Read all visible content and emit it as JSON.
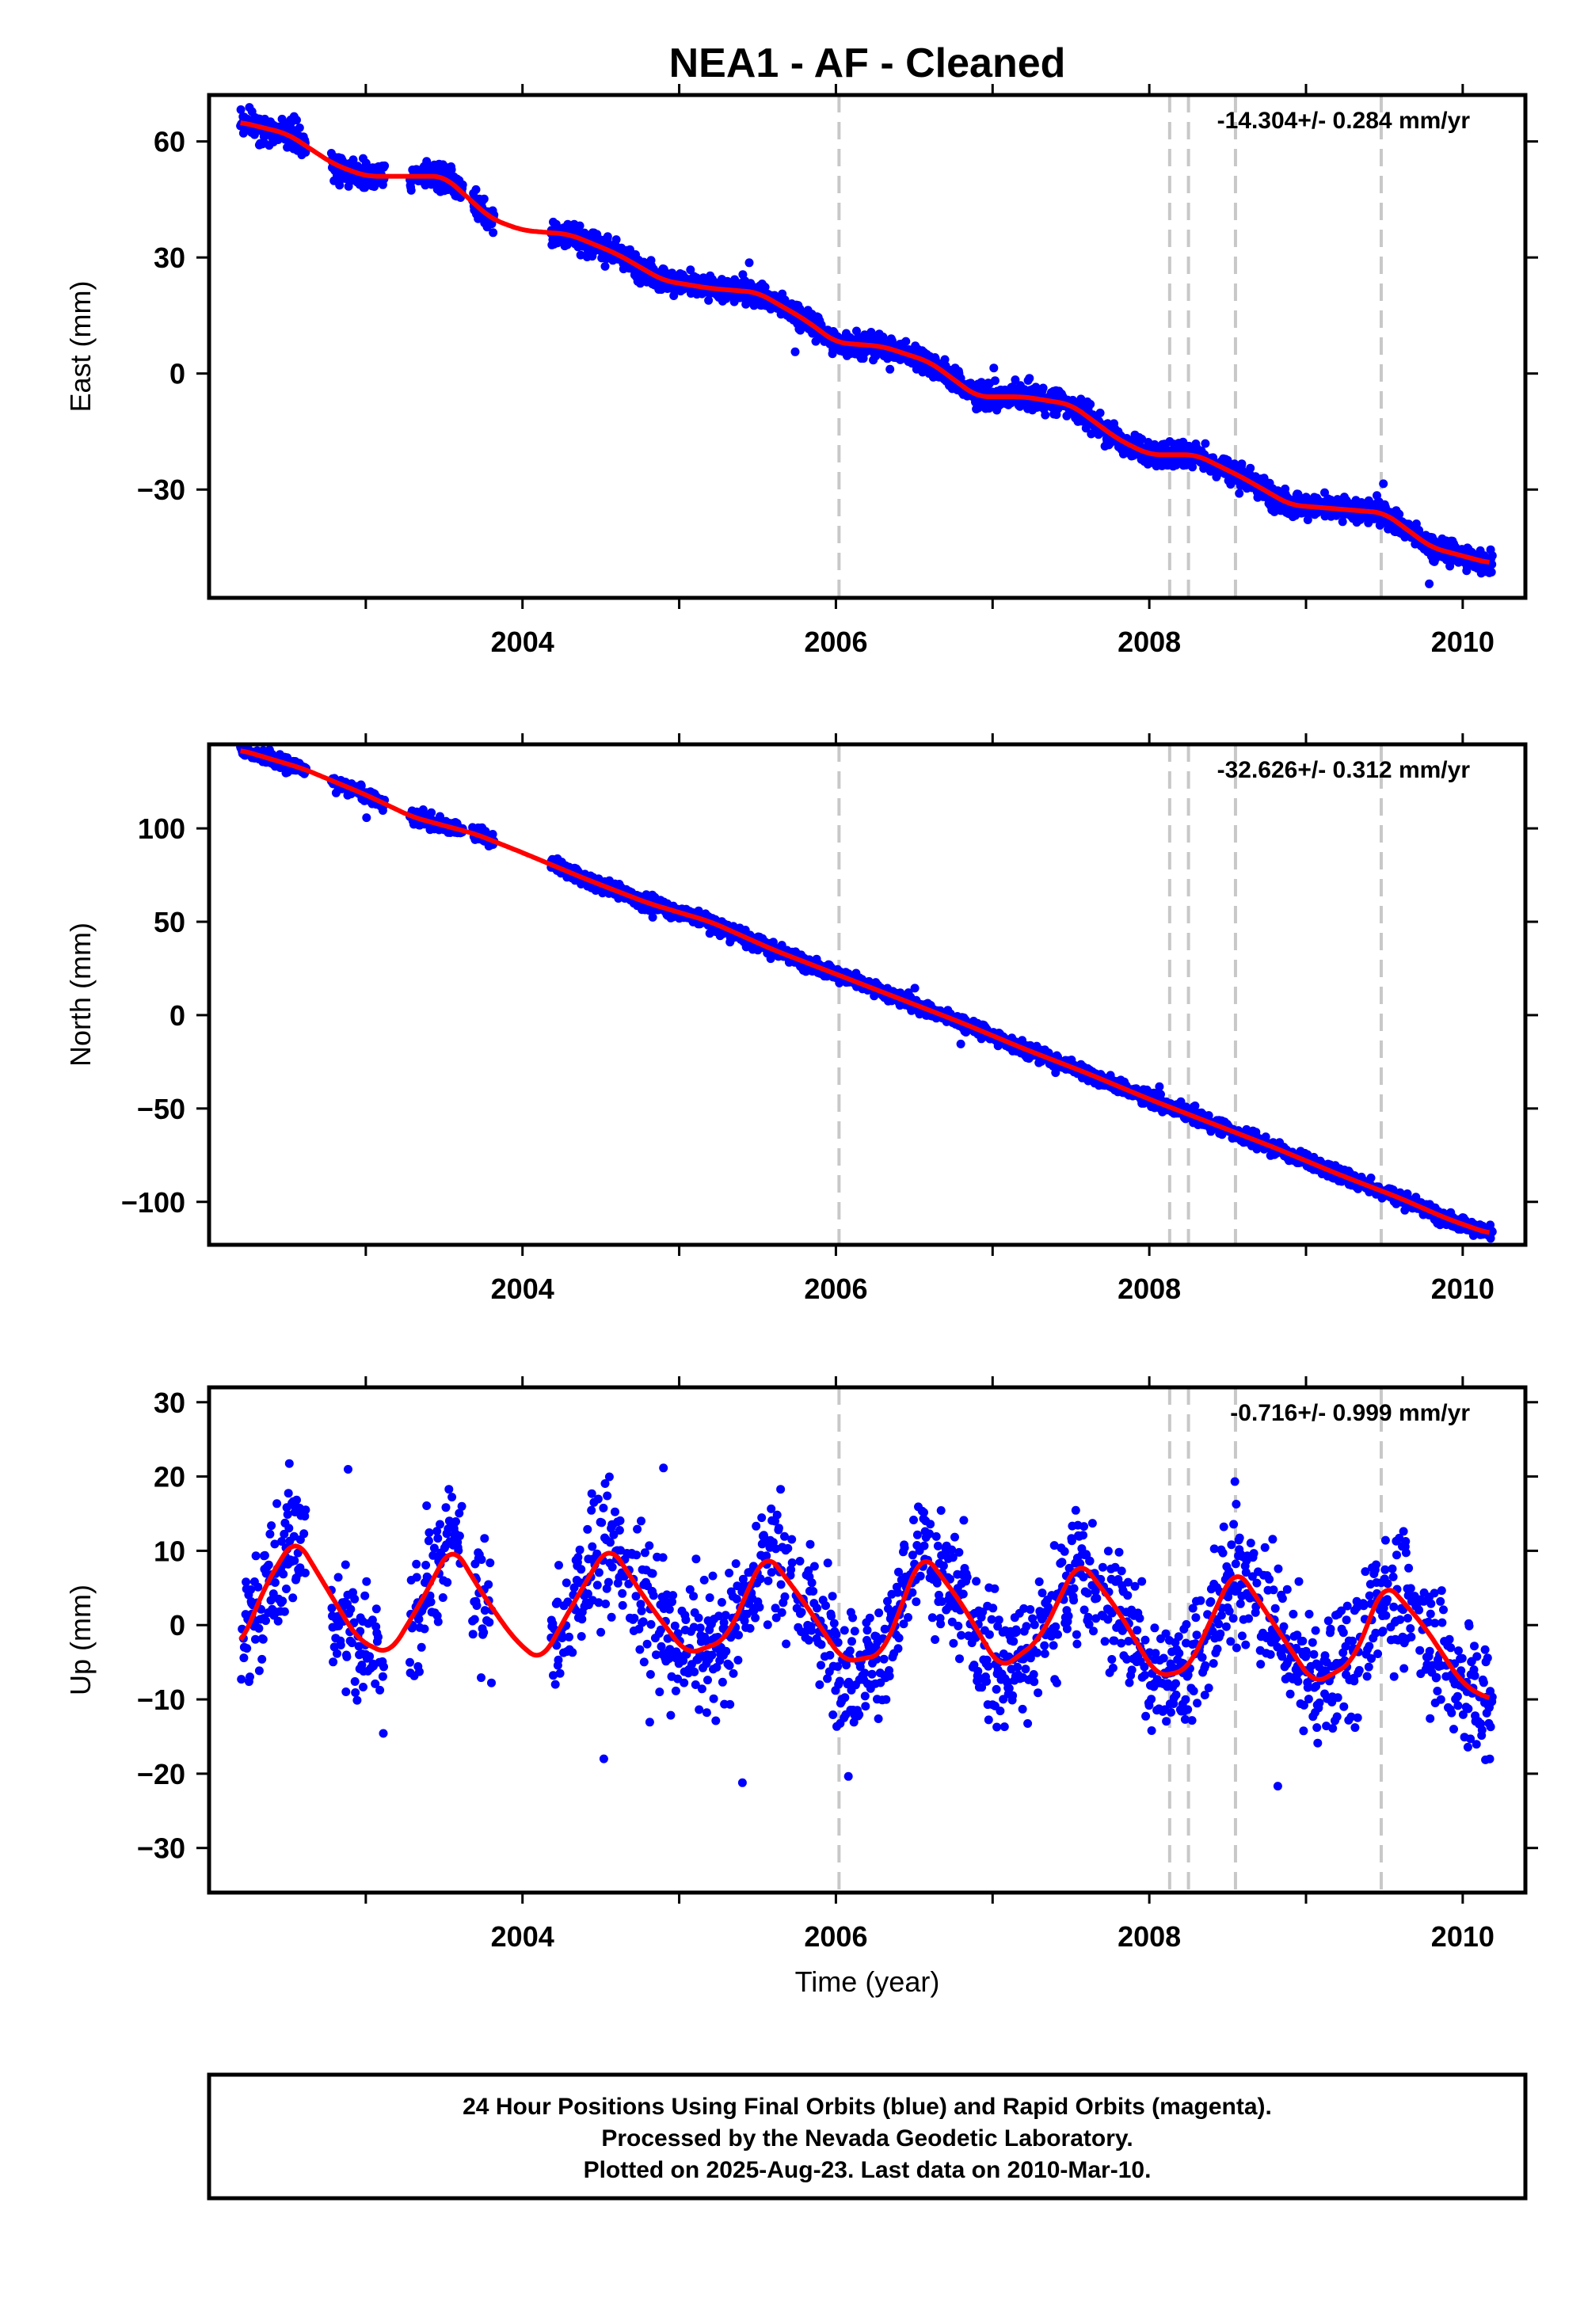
{
  "title": "NEA1  - AF - Cleaned",
  "xlabel": "Time (year)",
  "footer": [
    "24 Hour Positions Using Final Orbits (blue) and Rapid Orbits (magenta).",
    "Processed by the Nevada Geodetic Laboratory.",
    "Plotted on 2025-Aug-23. Last data on 2010-Mar-10."
  ],
  "colors": {
    "points": "#0000ff",
    "fit": "#ff0000",
    "events": "#c8c8c8"
  },
  "chart_data": [
    {
      "type": "scatter",
      "ylabel": "East (mm)",
      "rate_label": "-14.304+/- 0.284 mm/yr",
      "xlim": [
        2002.0,
        2010.4
      ],
      "ylim": [
        -58,
        72
      ],
      "x_ticks": [
        2004,
        2006,
        2008,
        2010
      ],
      "y_ticks": [
        -30,
        0,
        30,
        60
      ],
      "event_lines": [
        2006.02,
        2008.13,
        2008.25,
        2008.55,
        2009.48
      ],
      "fit_curve": {
        "x": [
          2002.2,
          2002.5,
          2002.8,
          2003.0,
          2003.2,
          2003.5,
          2003.8,
          2004.0,
          2004.3,
          2004.6,
          2004.9,
          2005.2,
          2005.5,
          2005.8,
          2006.0,
          2006.3,
          2006.6,
          2006.9,
          2007.2,
          2007.5,
          2007.8,
          2008.0,
          2008.3,
          2008.6,
          2008.9,
          2009.2,
          2009.5,
          2009.8,
          2010.17
        ],
        "y": [
          65,
          62,
          54,
          51,
          51,
          51,
          40,
          37,
          36,
          31,
          24,
          22,
          21,
          14,
          8,
          7,
          3,
          -6,
          -6,
          -8,
          -17,
          -21,
          -21,
          -27,
          -34,
          -35,
          -36,
          -45,
          -49
        ]
      },
      "trend": {
        "x0": 2002.2,
        "y0": 63,
        "slope": -14.304
      },
      "seasonal": {
        "amp": 3,
        "phase": 2.5
      },
      "noise": 2.2,
      "data_gaps": [
        [
          2002.62,
          2002.78
        ],
        [
          2003.12,
          2003.28
        ],
        [
          2003.62,
          2003.68
        ],
        [
          2003.82,
          2004.18
        ]
      ]
    },
    {
      "type": "scatter",
      "ylabel": "North (mm)",
      "rate_label": "-32.626+/- 0.312 mm/yr",
      "xlim": [
        2002.0,
        2010.4
      ],
      "ylim": [
        -123,
        145
      ],
      "x_ticks": [
        2004,
        2006,
        2008,
        2010
      ],
      "y_ticks": [
        -100,
        -50,
        0,
        50,
        100
      ],
      "event_lines": [
        2006.02,
        2008.13,
        2008.25,
        2008.55,
        2009.48
      ],
      "fit_curve": {
        "x": [
          2002.2,
          2002.6,
          2003.0,
          2003.3,
          2003.7,
          2004.0,
          2004.4,
          2004.8,
          2005.2,
          2005.6,
          2006.0,
          2006.4,
          2006.8,
          2007.2,
          2007.6,
          2008.0,
          2008.4,
          2008.8,
          2009.2,
          2009.6,
          2009.9,
          2010.17
        ],
        "y": [
          142,
          132,
          118,
          106,
          97,
          87,
          73,
          60,
          50,
          35,
          22,
          9,
          -4,
          -18,
          -31,
          -45,
          -58,
          -71,
          -85,
          -98,
          -109,
          -117
        ]
      },
      "trend": {
        "x0": 2002.2,
        "y0": 138,
        "slope": -32.626
      },
      "seasonal": {
        "amp": 1.5,
        "phase": 0.5
      },
      "noise": 2.6,
      "data_gaps": [
        [
          2002.62,
          2002.78
        ],
        [
          2003.12,
          2003.28
        ],
        [
          2003.62,
          2003.68
        ],
        [
          2003.82,
          2004.18
        ]
      ]
    },
    {
      "type": "scatter",
      "ylabel": "Up (mm)",
      "rate_label": "-0.716+/- 0.999 mm/yr",
      "xlim": [
        2002.0,
        2010.4
      ],
      "ylim": [
        -36,
        32
      ],
      "x_ticks": [
        2004,
        2006,
        2008,
        2010
      ],
      "y_ticks": [
        -30,
        -20,
        -10,
        0,
        10,
        20,
        30
      ],
      "event_lines": [
        2006.02,
        2008.13,
        2008.25,
        2008.55,
        2009.48
      ],
      "fit_curve": {
        "x": [
          2002.2,
          2002.35,
          2002.55,
          2002.75,
          2002.95,
          2003.15,
          2003.35,
          2003.55,
          2003.75,
          2003.95,
          2004.12,
          2004.3,
          2004.55,
          2004.8,
          2005.05,
          2005.3,
          2005.55,
          2005.8,
          2006.05,
          2006.3,
          2006.55,
          2006.8,
          2007.05,
          2007.3,
          2007.55,
          2007.8,
          2008.05,
          2008.25,
          2008.55,
          2008.8,
          2009.05,
          2009.3,
          2009.5,
          2009.75,
          2010.0,
          2010.17
        ],
        "y": [
          -3,
          5,
          12,
          5,
          -2,
          -4,
          3,
          11,
          4,
          -2,
          -5,
          2,
          11,
          3,
          -4,
          -2,
          10,
          3,
          -5,
          -4,
          10,
          3,
          -6,
          -2,
          9,
          2,
          -7,
          -6,
          8,
          0,
          -8,
          -5,
          6,
          0,
          -8,
          -10
        ]
      },
      "trend": {
        "x0": 2002.2,
        "y0": 0,
        "slope": -0.716
      },
      "seasonal": {
        "amp": 7.5,
        "phase": -1.5708
      },
      "noise": 6,
      "data_gaps": [
        [
          2002.62,
          2002.78
        ],
        [
          2003.12,
          2003.28
        ],
        [
          2003.62,
          2003.68
        ],
        [
          2003.82,
          2004.18
        ]
      ]
    }
  ]
}
